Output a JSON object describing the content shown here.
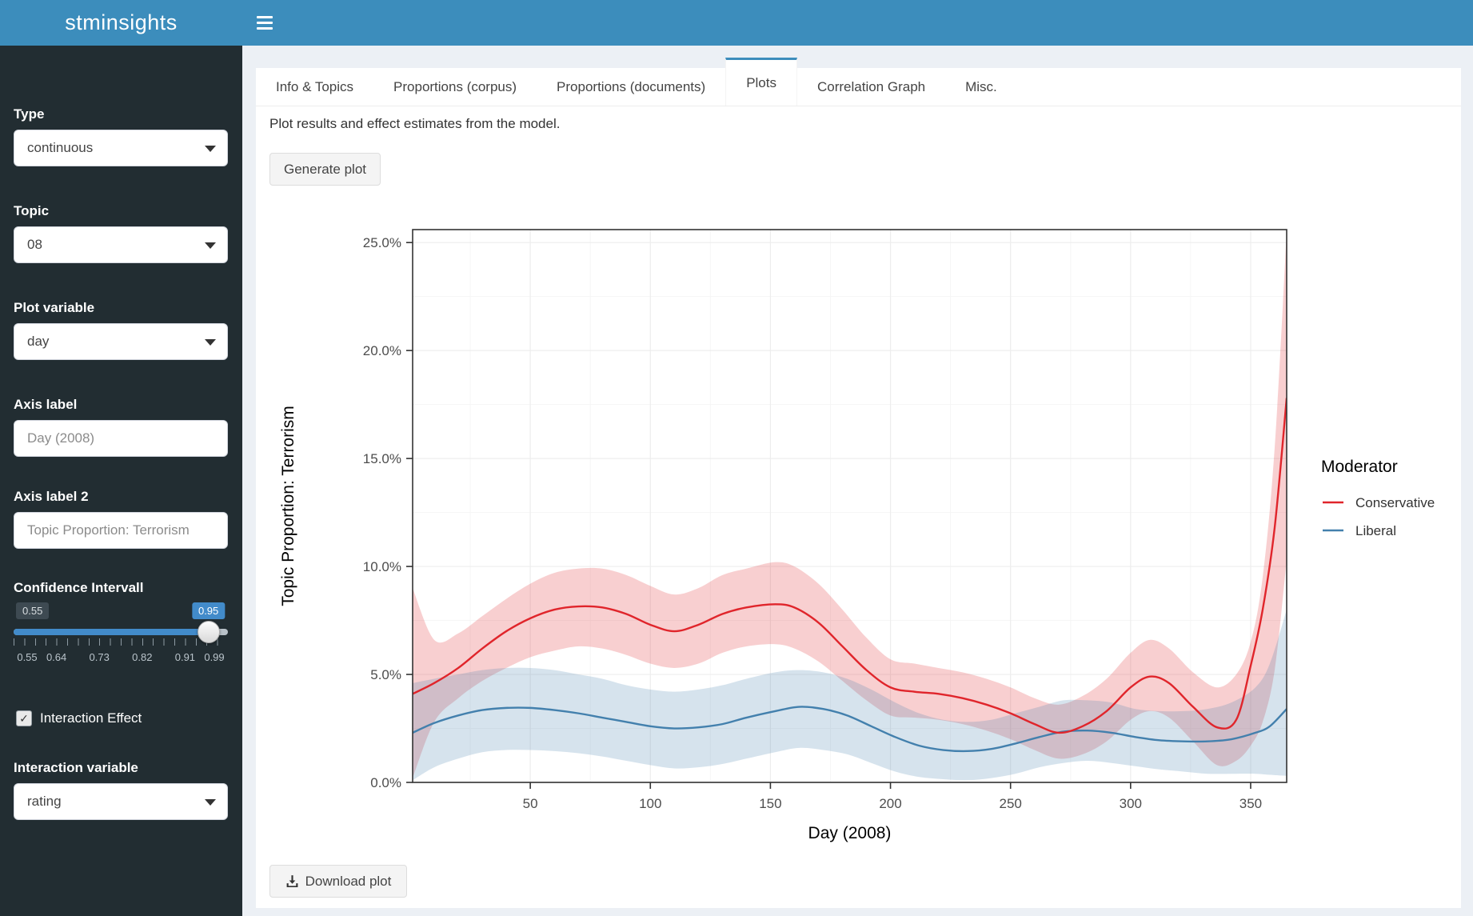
{
  "header": {
    "app_title": "stminsights"
  },
  "sidebar": {
    "type": {
      "label": "Type",
      "value": "continuous"
    },
    "topic": {
      "label": "Topic",
      "value": "08"
    },
    "plot_variable": {
      "label": "Plot variable",
      "value": "day"
    },
    "axis_label": {
      "label": "Axis label",
      "value": "Day (2008)"
    },
    "axis_label2": {
      "label": "Axis label 2",
      "value": "Topic Proportion: Terrorism"
    },
    "confidence": {
      "label": "Confidence Intervall",
      "min": "0.55",
      "max": "0.99",
      "value": "0.95",
      "tick_labels": [
        "0.55",
        "0.64",
        "0.73",
        "0.82",
        "0.91",
        "0.99"
      ]
    },
    "interaction_effect": {
      "label": "Interaction Effect",
      "checked": true,
      "check_glyph": "✓"
    },
    "interaction_variable": {
      "label": "Interaction variable",
      "value": "rating"
    }
  },
  "tabs": {
    "items": [
      {
        "label": "Info & Topics"
      },
      {
        "label": "Proportions (corpus)"
      },
      {
        "label": "Proportions (documents)"
      },
      {
        "label": "Plots"
      },
      {
        "label": "Correlation Graph"
      },
      {
        "label": "Misc."
      }
    ],
    "active_index": 3
  },
  "content": {
    "description": "Plot results and effect estimates from the model.",
    "generate_button": "Generate plot",
    "download_button": "Download plot"
  },
  "chart_data": {
    "type": "line",
    "xlabel": "Day (2008)",
    "ylabel": "Topic Proportion: Terrorism",
    "xlim": [
      1,
      365
    ],
    "ylim_pct": [
      0,
      25.6
    ],
    "x_ticks": [
      50,
      100,
      150,
      200,
      250,
      300,
      350
    ],
    "y_ticks_pct": [
      0,
      5,
      10,
      15,
      20,
      25
    ],
    "y_tick_labels": [
      "0.0%",
      "5.0%",
      "10.0%",
      "15.0%",
      "20.0%",
      "25.0%"
    ],
    "grid": true,
    "legend": {
      "title": "Moderator",
      "position": "right"
    },
    "series": [
      {
        "name": "Conservative",
        "color": "#e0252b",
        "fill": "rgba(224,37,43,0.22)",
        "x": [
          1,
          10,
          20,
          30,
          40,
          50,
          60,
          70,
          80,
          90,
          100,
          110,
          120,
          130,
          140,
          152,
          160,
          170,
          180,
          190,
          200,
          210,
          220,
          230,
          240,
          250,
          260,
          270,
          280,
          290,
          300,
          308,
          316,
          326,
          336,
          344,
          350,
          355,
          360,
          365
        ],
        "mean": [
          4.1,
          4.6,
          5.3,
          6.2,
          7.0,
          7.6,
          8.0,
          8.15,
          8.1,
          7.8,
          7.3,
          7.0,
          7.3,
          7.8,
          8.1,
          8.25,
          8.1,
          7.4,
          6.3,
          5.2,
          4.4,
          4.2,
          4.1,
          3.9,
          3.6,
          3.2,
          2.7,
          2.3,
          2.6,
          3.3,
          4.4,
          4.9,
          4.6,
          3.5,
          2.55,
          2.9,
          5.4,
          8.0,
          11.8,
          17.8
        ],
        "lower": [
          0.2,
          2.8,
          3.9,
          4.7,
          5.3,
          5.8,
          6.1,
          6.3,
          6.2,
          5.9,
          5.5,
          5.3,
          5.5,
          6.0,
          6.3,
          6.4,
          6.2,
          5.6,
          4.7,
          3.8,
          3.1,
          3.0,
          2.9,
          2.7,
          2.4,
          2.0,
          1.5,
          1.1,
          1.3,
          1.9,
          2.9,
          3.3,
          3.0,
          1.9,
          0.8,
          1.0,
          1.7,
          2.8,
          5.2,
          10.3
        ],
        "upper": [
          9.0,
          6.6,
          6.9,
          7.7,
          8.5,
          9.2,
          9.7,
          9.9,
          9.9,
          9.6,
          9.1,
          8.7,
          9.0,
          9.6,
          9.9,
          10.2,
          10.0,
          9.2,
          8.0,
          6.7,
          5.7,
          5.5,
          5.3,
          5.1,
          4.8,
          4.4,
          3.9,
          3.6,
          4.0,
          4.8,
          6.0,
          6.6,
          6.2,
          5.1,
          4.4,
          5.0,
          6.5,
          9.5,
          15.5,
          25.5
        ]
      },
      {
        "name": "Liberal",
        "color": "#4380ad",
        "fill": "rgba(67,128,173,0.22)",
        "x": [
          1,
          10,
          20,
          30,
          40,
          50,
          60,
          70,
          80,
          90,
          100,
          110,
          120,
          130,
          140,
          152,
          162,
          172,
          182,
          192,
          202,
          212,
          222,
          232,
          242,
          252,
          262,
          272,
          282,
          292,
          302,
          312,
          322,
          332,
          342,
          352,
          358,
          365
        ],
        "mean": [
          2.3,
          2.75,
          3.1,
          3.35,
          3.45,
          3.45,
          3.35,
          3.2,
          3.0,
          2.8,
          2.6,
          2.5,
          2.55,
          2.7,
          3.0,
          3.3,
          3.5,
          3.4,
          3.1,
          2.6,
          2.1,
          1.7,
          1.5,
          1.45,
          1.55,
          1.8,
          2.1,
          2.35,
          2.4,
          2.3,
          2.1,
          1.95,
          1.9,
          1.9,
          2.0,
          2.3,
          2.6,
          3.4
        ],
        "lower": [
          0.1,
          0.7,
          1.1,
          1.4,
          1.5,
          1.5,
          1.45,
          1.35,
          1.2,
          1.0,
          0.8,
          0.65,
          0.7,
          0.85,
          1.1,
          1.4,
          1.6,
          1.5,
          1.3,
          0.9,
          0.5,
          0.25,
          0.15,
          0.1,
          0.2,
          0.4,
          0.7,
          0.9,
          1.0,
          0.9,
          0.75,
          0.6,
          0.5,
          0.4,
          0.4,
          0.4,
          0.35,
          0.3
        ],
        "upper": [
          4.6,
          4.8,
          5.0,
          5.2,
          5.3,
          5.3,
          5.2,
          5.0,
          4.8,
          4.5,
          4.3,
          4.2,
          4.3,
          4.5,
          4.8,
          5.1,
          5.2,
          5.1,
          4.8,
          4.3,
          3.7,
          3.2,
          2.9,
          2.8,
          2.9,
          3.2,
          3.5,
          3.8,
          3.8,
          3.7,
          3.4,
          3.3,
          3.3,
          3.4,
          3.7,
          4.4,
          5.5,
          8.0
        ]
      }
    ]
  }
}
